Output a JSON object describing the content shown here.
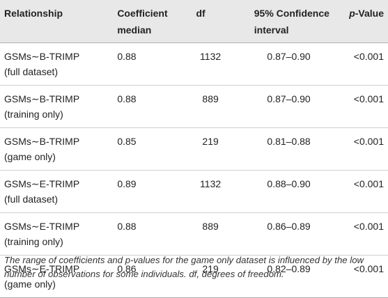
{
  "header": {
    "relationship": "Relationship",
    "coefficient_median": "Coefficient median",
    "df": "df",
    "ci": "95% Confidence interval",
    "pvalue_italic": "p",
    "pvalue_rest": "-Value"
  },
  "rows": [
    {
      "relationship": "GSMs∼B-TRIMP (full dataset)",
      "coef": "0.88",
      "df": "1132",
      "ci": "0.87–0.90",
      "p": "<0.001"
    },
    {
      "relationship": "GSMs∼B-TRIMP (training only)",
      "coef": "0.88",
      "df": "889",
      "ci": "0.87–0.90",
      "p": "<0.001"
    },
    {
      "relationship": "GSMs∼B-TRIMP (game only)",
      "coef": "0.85",
      "df": "219",
      "ci": "0.81–0.88",
      "p": "<0.001"
    },
    {
      "relationship": "GSMs∼E-TRIMP (full dataset)",
      "coef": "0.89",
      "df": "1132",
      "ci": "0.88–0.90",
      "p": "<0.001"
    },
    {
      "relationship": "GSMs∼E-TRIMP (training only)",
      "coef": "0.88",
      "df": "889",
      "ci": "0.86–0.89",
      "p": "<0.001"
    },
    {
      "relationship": "GSMs∼E-TRIMP (game only)",
      "coef": "0.86",
      "df": "219",
      "ci": "0.82–0.89",
      "p": "<0.001"
    }
  ],
  "footnote": "The range of coefficients and p-values for the game only dataset is influenced by the low number of observations for some individuals. df, degrees of freedom."
}
